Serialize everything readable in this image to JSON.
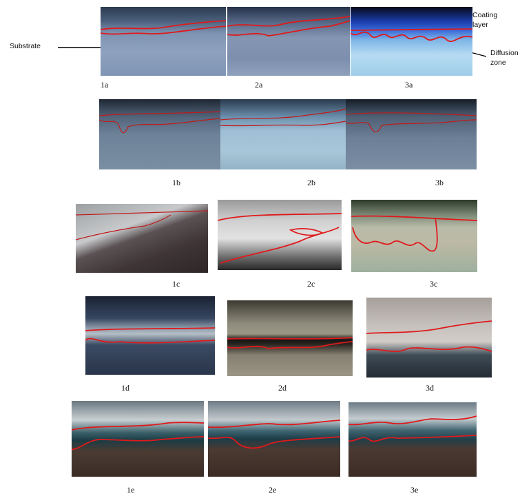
{
  "annotations": {
    "substrate": "Substrate",
    "coating_line1": "Coating",
    "coating_line2": "layer",
    "diffusion_line1": "Diffusion",
    "diffusion_line2": "zone"
  },
  "labels": {
    "p1a": "1a",
    "p2a": "2a",
    "p3a": "3a",
    "p1b": "1b",
    "p2b": "2b",
    "p3b": "3b",
    "p1c": "1c",
    "p2c": "2c",
    "p3c": "3c",
    "p1d": "1d",
    "p2d": "2d",
    "p3d": "3d",
    "p1e": "1e",
    "p2e": "2e",
    "p3e": "3e"
  },
  "colors": {
    "boundary_line": "#e0191b",
    "leader_line": "#000000"
  }
}
